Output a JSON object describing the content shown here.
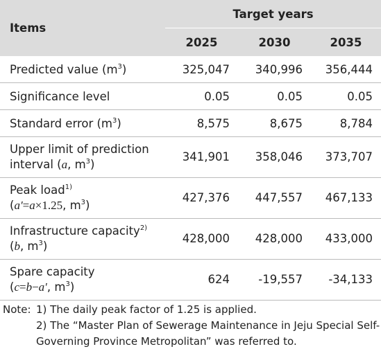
{
  "header": {
    "items": "Items",
    "target_years": "Target years",
    "years": [
      "2025",
      "2030",
      "2035"
    ]
  },
  "rows": [
    {
      "label": [
        "Predicted value (m",
        "3",
        ")"
      ],
      "values": [
        "325,047",
        "340,996",
        "356,444"
      ]
    },
    {
      "label": [
        "Significance level"
      ],
      "values": [
        "0.05",
        "0.05",
        "0.05"
      ]
    },
    {
      "label": [
        "Standard error (m",
        "3",
        ")"
      ],
      "values": [
        "8,575",
        "8,675",
        "8,784"
      ]
    },
    {
      "label": [
        "Upper limit of prediction",
        "interval (",
        "a",
        ", m",
        "3",
        ")"
      ],
      "values": [
        "341,901",
        "358,046",
        "373,707"
      ]
    },
    {
      "label": [
        "Peak load",
        "1)",
        "(",
        "a′",
        "=",
        "a",
        "×1.25",
        ", m",
        "3",
        ")"
      ],
      "values": [
        "427,376",
        "447,557",
        "467,133"
      ]
    },
    {
      "label": [
        "Infrastructure capacity",
        "2)",
        "(",
        "b",
        ", m",
        "3",
        ")"
      ],
      "values": [
        "428,000",
        "428,000",
        "433,000"
      ]
    },
    {
      "label": [
        "Spare capacity",
        "(",
        "c",
        "=",
        "b",
        "−",
        "a′",
        ", m",
        "3",
        ")"
      ],
      "values": [
        "624",
        "-19,557",
        "-34,133"
      ]
    }
  ],
  "notes": {
    "prefix": "Note:",
    "items": [
      "1) The daily peak factor of 1.25 is applied.",
      "2) The “Master Plan of Sewerage Maintenance in Jeju Special Self-Governing Province Metropolitan” was referred to."
    ]
  }
}
